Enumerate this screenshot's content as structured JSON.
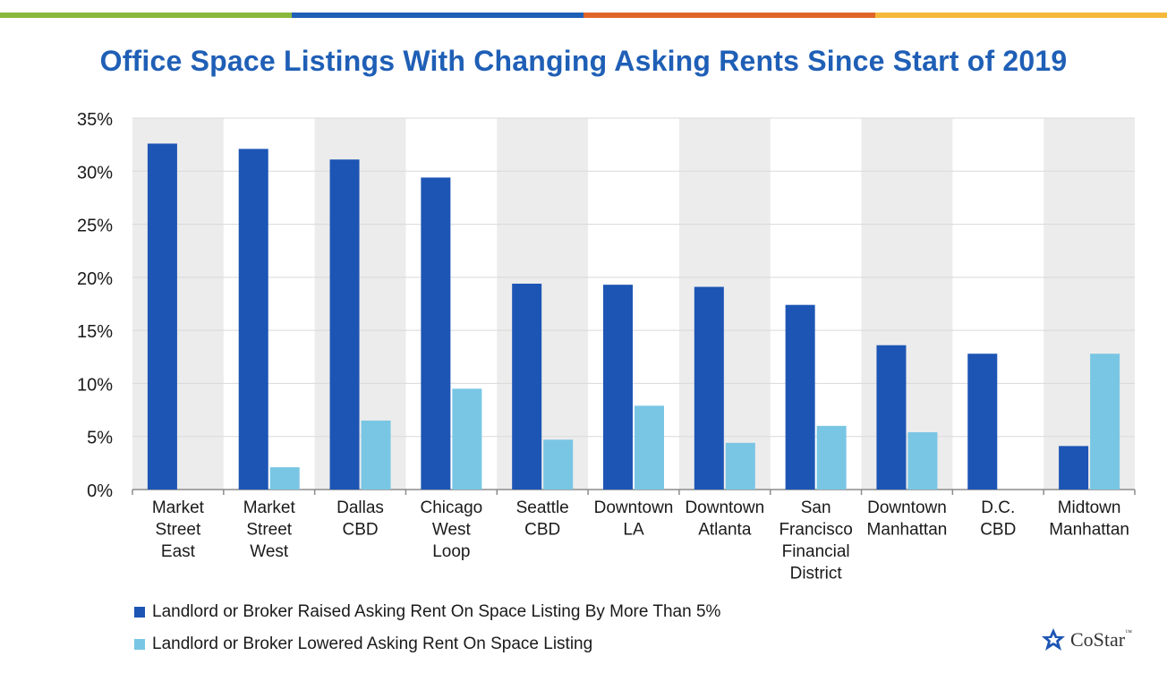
{
  "colors": {
    "top_bar": [
      "#8ab83c",
      "#1f5fb6",
      "#e0642a",
      "#f5b83a"
    ],
    "title": "#1f5fb6",
    "raised": "#1d55b4",
    "lowered": "#79c6e4",
    "band": "#ececec"
  },
  "chart_data": {
    "type": "bar",
    "title": "Office Space Listings With Changing Asking Rents Since Start of 2019",
    "categories": [
      "Market Street East",
      "Market Street West",
      "Dallas CBD",
      "Chicago West Loop",
      "Seattle CBD",
      "Downtown LA",
      "Downtown Atlanta",
      "San Francisco Financial District",
      "Downtown Manhattan",
      "D.C. CBD",
      "Midtown Manhattan"
    ],
    "category_lines": [
      [
        "Market",
        "Street",
        "East"
      ],
      [
        "Market",
        "Street",
        "West"
      ],
      [
        "Dallas",
        "CBD"
      ],
      [
        "Chicago",
        "West",
        "Loop"
      ],
      [
        "Seattle",
        "CBD"
      ],
      [
        "Downtown",
        "LA"
      ],
      [
        "Downtown",
        "Atlanta"
      ],
      [
        "San",
        "Francisco",
        "Financial",
        "District"
      ],
      [
        "Downtown",
        "Manhattan"
      ],
      [
        "D.C.",
        "CBD"
      ],
      [
        "Midtown",
        "Manhattan"
      ]
    ],
    "series": [
      {
        "name": "Landlord or Broker Raised Asking Rent On Space Listing By More Than 5%",
        "values": [
          32.6,
          32.1,
          31.1,
          29.4,
          19.4,
          19.3,
          19.1,
          17.4,
          13.6,
          12.8,
          4.1
        ]
      },
      {
        "name": "Landlord or Broker Lowered Asking Rent On Space Listing",
        "values": [
          0,
          2.1,
          6.5,
          9.5,
          4.7,
          7.9,
          4.4,
          6.0,
          5.4,
          0,
          12.8
        ]
      }
    ],
    "y_ticks": [
      "0%",
      "5%",
      "10%",
      "15%",
      "20%",
      "25%",
      "30%",
      "35%"
    ],
    "ylim": [
      0,
      35
    ],
    "grid": true,
    "legend_position": "bottom-left"
  },
  "logo": {
    "text": "CoStar",
    "tm": "™"
  }
}
